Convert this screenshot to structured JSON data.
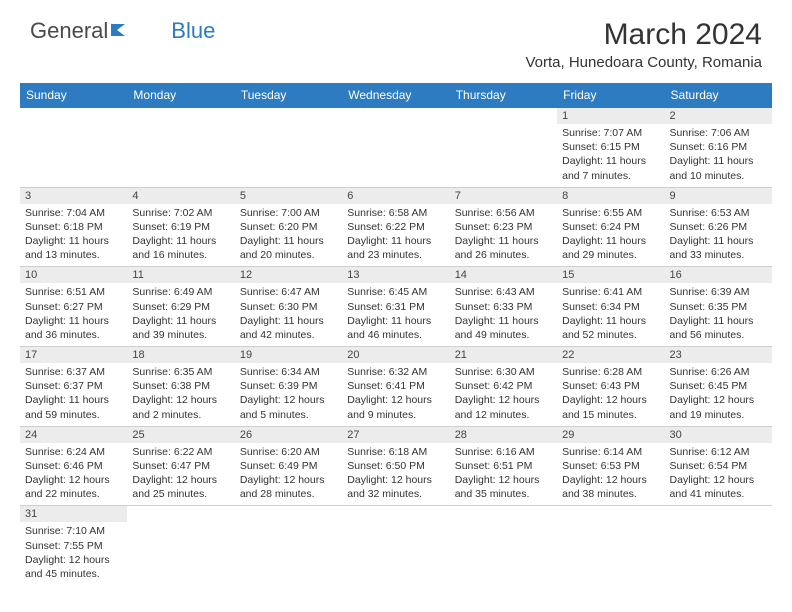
{
  "brand": {
    "part1": "General",
    "part2": "Blue"
  },
  "title": "March 2024",
  "location": "Vorta, Hunedoara County, Romania",
  "colors": {
    "header_bg": "#2d7bc0",
    "header_text": "#ffffff",
    "daynum_bg": "#ececec",
    "row_divider": "#2d7bc0",
    "text": "#333333"
  },
  "day_headers": [
    "Sunday",
    "Monday",
    "Tuesday",
    "Wednesday",
    "Thursday",
    "Friday",
    "Saturday"
  ],
  "weeks": [
    [
      {
        "n": "",
        "sunrise": "",
        "sunset": "",
        "daylight": ""
      },
      {
        "n": "",
        "sunrise": "",
        "sunset": "",
        "daylight": ""
      },
      {
        "n": "",
        "sunrise": "",
        "sunset": "",
        "daylight": ""
      },
      {
        "n": "",
        "sunrise": "",
        "sunset": "",
        "daylight": ""
      },
      {
        "n": "",
        "sunrise": "",
        "sunset": "",
        "daylight": ""
      },
      {
        "n": "1",
        "sunrise": "Sunrise: 7:07 AM",
        "sunset": "Sunset: 6:15 PM",
        "daylight": "Daylight: 11 hours and 7 minutes."
      },
      {
        "n": "2",
        "sunrise": "Sunrise: 7:06 AM",
        "sunset": "Sunset: 6:16 PM",
        "daylight": "Daylight: 11 hours and 10 minutes."
      }
    ],
    [
      {
        "n": "3",
        "sunrise": "Sunrise: 7:04 AM",
        "sunset": "Sunset: 6:18 PM",
        "daylight": "Daylight: 11 hours and 13 minutes."
      },
      {
        "n": "4",
        "sunrise": "Sunrise: 7:02 AM",
        "sunset": "Sunset: 6:19 PM",
        "daylight": "Daylight: 11 hours and 16 minutes."
      },
      {
        "n": "5",
        "sunrise": "Sunrise: 7:00 AM",
        "sunset": "Sunset: 6:20 PM",
        "daylight": "Daylight: 11 hours and 20 minutes."
      },
      {
        "n": "6",
        "sunrise": "Sunrise: 6:58 AM",
        "sunset": "Sunset: 6:22 PM",
        "daylight": "Daylight: 11 hours and 23 minutes."
      },
      {
        "n": "7",
        "sunrise": "Sunrise: 6:56 AM",
        "sunset": "Sunset: 6:23 PM",
        "daylight": "Daylight: 11 hours and 26 minutes."
      },
      {
        "n": "8",
        "sunrise": "Sunrise: 6:55 AM",
        "sunset": "Sunset: 6:24 PM",
        "daylight": "Daylight: 11 hours and 29 minutes."
      },
      {
        "n": "9",
        "sunrise": "Sunrise: 6:53 AM",
        "sunset": "Sunset: 6:26 PM",
        "daylight": "Daylight: 11 hours and 33 minutes."
      }
    ],
    [
      {
        "n": "10",
        "sunrise": "Sunrise: 6:51 AM",
        "sunset": "Sunset: 6:27 PM",
        "daylight": "Daylight: 11 hours and 36 minutes."
      },
      {
        "n": "11",
        "sunrise": "Sunrise: 6:49 AM",
        "sunset": "Sunset: 6:29 PM",
        "daylight": "Daylight: 11 hours and 39 minutes."
      },
      {
        "n": "12",
        "sunrise": "Sunrise: 6:47 AM",
        "sunset": "Sunset: 6:30 PM",
        "daylight": "Daylight: 11 hours and 42 minutes."
      },
      {
        "n": "13",
        "sunrise": "Sunrise: 6:45 AM",
        "sunset": "Sunset: 6:31 PM",
        "daylight": "Daylight: 11 hours and 46 minutes."
      },
      {
        "n": "14",
        "sunrise": "Sunrise: 6:43 AM",
        "sunset": "Sunset: 6:33 PM",
        "daylight": "Daylight: 11 hours and 49 minutes."
      },
      {
        "n": "15",
        "sunrise": "Sunrise: 6:41 AM",
        "sunset": "Sunset: 6:34 PM",
        "daylight": "Daylight: 11 hours and 52 minutes."
      },
      {
        "n": "16",
        "sunrise": "Sunrise: 6:39 AM",
        "sunset": "Sunset: 6:35 PM",
        "daylight": "Daylight: 11 hours and 56 minutes."
      }
    ],
    [
      {
        "n": "17",
        "sunrise": "Sunrise: 6:37 AM",
        "sunset": "Sunset: 6:37 PM",
        "daylight": "Daylight: 11 hours and 59 minutes."
      },
      {
        "n": "18",
        "sunrise": "Sunrise: 6:35 AM",
        "sunset": "Sunset: 6:38 PM",
        "daylight": "Daylight: 12 hours and 2 minutes."
      },
      {
        "n": "19",
        "sunrise": "Sunrise: 6:34 AM",
        "sunset": "Sunset: 6:39 PM",
        "daylight": "Daylight: 12 hours and 5 minutes."
      },
      {
        "n": "20",
        "sunrise": "Sunrise: 6:32 AM",
        "sunset": "Sunset: 6:41 PM",
        "daylight": "Daylight: 12 hours and 9 minutes."
      },
      {
        "n": "21",
        "sunrise": "Sunrise: 6:30 AM",
        "sunset": "Sunset: 6:42 PM",
        "daylight": "Daylight: 12 hours and 12 minutes."
      },
      {
        "n": "22",
        "sunrise": "Sunrise: 6:28 AM",
        "sunset": "Sunset: 6:43 PM",
        "daylight": "Daylight: 12 hours and 15 minutes."
      },
      {
        "n": "23",
        "sunrise": "Sunrise: 6:26 AM",
        "sunset": "Sunset: 6:45 PM",
        "daylight": "Daylight: 12 hours and 19 minutes."
      }
    ],
    [
      {
        "n": "24",
        "sunrise": "Sunrise: 6:24 AM",
        "sunset": "Sunset: 6:46 PM",
        "daylight": "Daylight: 12 hours and 22 minutes."
      },
      {
        "n": "25",
        "sunrise": "Sunrise: 6:22 AM",
        "sunset": "Sunset: 6:47 PM",
        "daylight": "Daylight: 12 hours and 25 minutes."
      },
      {
        "n": "26",
        "sunrise": "Sunrise: 6:20 AM",
        "sunset": "Sunset: 6:49 PM",
        "daylight": "Daylight: 12 hours and 28 minutes."
      },
      {
        "n": "27",
        "sunrise": "Sunrise: 6:18 AM",
        "sunset": "Sunset: 6:50 PM",
        "daylight": "Daylight: 12 hours and 32 minutes."
      },
      {
        "n": "28",
        "sunrise": "Sunrise: 6:16 AM",
        "sunset": "Sunset: 6:51 PM",
        "daylight": "Daylight: 12 hours and 35 minutes."
      },
      {
        "n": "29",
        "sunrise": "Sunrise: 6:14 AM",
        "sunset": "Sunset: 6:53 PM",
        "daylight": "Daylight: 12 hours and 38 minutes."
      },
      {
        "n": "30",
        "sunrise": "Sunrise: 6:12 AM",
        "sunset": "Sunset: 6:54 PM",
        "daylight": "Daylight: 12 hours and 41 minutes."
      }
    ],
    [
      {
        "n": "31",
        "sunrise": "Sunrise: 7:10 AM",
        "sunset": "Sunset: 7:55 PM",
        "daylight": "Daylight: 12 hours and 45 minutes."
      },
      {
        "n": "",
        "sunrise": "",
        "sunset": "",
        "daylight": ""
      },
      {
        "n": "",
        "sunrise": "",
        "sunset": "",
        "daylight": ""
      },
      {
        "n": "",
        "sunrise": "",
        "sunset": "",
        "daylight": ""
      },
      {
        "n": "",
        "sunrise": "",
        "sunset": "",
        "daylight": ""
      },
      {
        "n": "",
        "sunrise": "",
        "sunset": "",
        "daylight": ""
      },
      {
        "n": "",
        "sunrise": "",
        "sunset": "",
        "daylight": ""
      }
    ]
  ]
}
